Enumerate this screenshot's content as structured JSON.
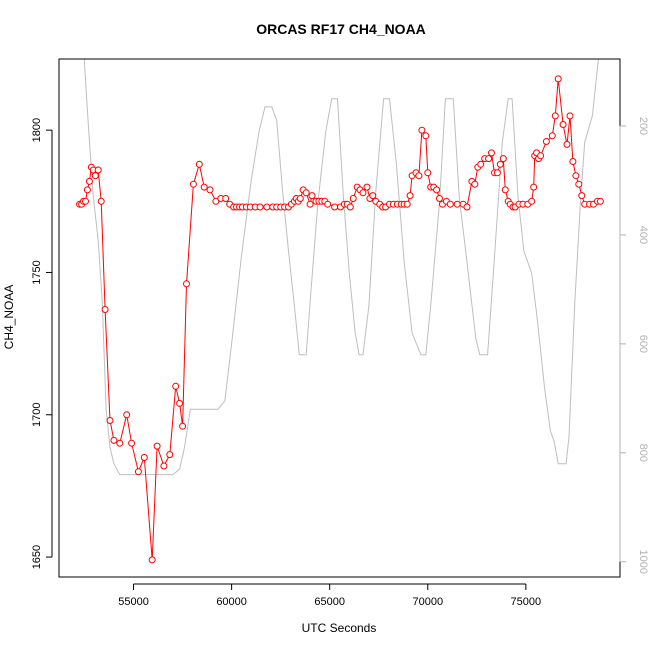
{
  "chart_data": {
    "type": "line",
    "title": "ORCAS RF17 CH4_NOAA",
    "xlabel": "UTC Seconds",
    "ylabel": "CH4_NOAA",
    "xlim": [
      51200,
      79800
    ],
    "ylim": [
      1643,
      1825
    ],
    "y2lim": [
      1028,
      77
    ],
    "x_ticks": [
      55000,
      60000,
      65000,
      70000,
      75000
    ],
    "y_ticks": [
      1650,
      1700,
      1750,
      1800
    ],
    "y2_ticks": [
      200,
      400,
      600,
      800,
      1000
    ],
    "colors": {
      "series": "#ff0000",
      "altitude": "#bebebe",
      "axis": "#000000",
      "right_axis": "#b3b3b3"
    },
    "grid": false,
    "series": [
      {
        "marker": "open-circle",
        "points": [
          [
            52250,
            1774
          ],
          [
            52350,
            1774
          ],
          [
            52450,
            1775
          ],
          [
            52550,
            1775
          ],
          [
            52650,
            1779
          ],
          [
            52750,
            1782
          ],
          [
            52850,
            1787
          ],
          [
            52950,
            1786
          ],
          [
            53050,
            1784
          ],
          [
            53200,
            1786
          ],
          [
            53350,
            1775
          ],
          [
            53550,
            1737
          ],
          [
            53800,
            1698
          ],
          [
            54000,
            1691
          ],
          [
            54300,
            1690
          ],
          [
            54650,
            1700
          ],
          [
            54900,
            1690
          ],
          [
            55250,
            1680
          ],
          [
            55550,
            1685
          ],
          [
            55950,
            1649
          ],
          [
            56200,
            1689
          ],
          [
            56550,
            1682
          ],
          [
            56850,
            1686
          ],
          [
            57150,
            1710
          ],
          [
            57350,
            1704
          ],
          [
            57500,
            1696
          ],
          [
            57700,
            1746
          ],
          [
            58050,
            1781
          ],
          [
            58350,
            1788
          ],
          [
            58600,
            1780
          ],
          [
            58900,
            1779
          ],
          [
            59200,
            1775
          ],
          [
            59450,
            1776
          ],
          [
            59700,
            1776
          ],
          [
            59900,
            1774
          ],
          [
            60100,
            1773
          ],
          [
            60250,
            1773
          ],
          [
            60400,
            1773
          ],
          [
            60550,
            1773
          ],
          [
            60750,
            1773
          ],
          [
            60950,
            1773
          ],
          [
            61200,
            1773
          ],
          [
            61450,
            1773
          ],
          [
            61800,
            1773
          ],
          [
            62100,
            1773
          ],
          [
            62300,
            1773
          ],
          [
            62500,
            1773
          ],
          [
            62700,
            1773
          ],
          [
            62900,
            1773
          ],
          [
            63050,
            1774
          ],
          [
            63200,
            1775
          ],
          [
            63300,
            1776
          ],
          [
            63400,
            1775
          ],
          [
            63500,
            1776
          ],
          [
            63650,
            1779
          ],
          [
            63800,
            1778
          ],
          [
            64000,
            1774
          ],
          [
            64100,
            1777
          ],
          [
            64300,
            1775
          ],
          [
            64450,
            1775
          ],
          [
            64600,
            1775
          ],
          [
            64750,
            1775
          ],
          [
            64900,
            1774
          ],
          [
            65250,
            1773
          ],
          [
            65550,
            1773
          ],
          [
            65750,
            1774
          ],
          [
            65900,
            1774
          ],
          [
            66050,
            1773
          ],
          [
            66200,
            1776
          ],
          [
            66400,
            1780
          ],
          [
            66550,
            1779
          ],
          [
            66700,
            1778
          ],
          [
            66900,
            1780
          ],
          [
            67050,
            1776
          ],
          [
            67200,
            1777
          ],
          [
            67350,
            1775
          ],
          [
            67550,
            1774
          ],
          [
            67700,
            1773
          ],
          [
            67850,
            1773
          ],
          [
            68050,
            1774
          ],
          [
            68250,
            1774
          ],
          [
            68450,
            1774
          ],
          [
            68650,
            1774
          ],
          [
            68800,
            1774
          ],
          [
            68950,
            1774
          ],
          [
            69100,
            1777
          ],
          [
            69200,
            1784
          ],
          [
            69400,
            1785
          ],
          [
            69550,
            1784
          ],
          [
            69700,
            1800
          ],
          [
            69900,
            1798
          ],
          [
            70000,
            1785
          ],
          [
            70150,
            1780
          ],
          [
            70300,
            1780
          ],
          [
            70450,
            1779
          ],
          [
            70600,
            1776
          ],
          [
            70750,
            1774
          ],
          [
            70950,
            1775
          ],
          [
            71150,
            1774
          ],
          [
            71500,
            1774
          ],
          [
            71800,
            1774
          ],
          [
            72000,
            1773
          ],
          [
            72250,
            1782
          ],
          [
            72400,
            1781
          ],
          [
            72550,
            1787
          ],
          [
            72700,
            1788
          ],
          [
            72900,
            1790
          ],
          [
            73100,
            1790
          ],
          [
            73250,
            1792
          ],
          [
            73400,
            1785
          ],
          [
            73550,
            1785
          ],
          [
            73700,
            1788
          ],
          [
            73850,
            1790
          ],
          [
            73950,
            1779
          ],
          [
            74100,
            1775
          ],
          [
            74200,
            1774
          ],
          [
            74350,
            1773
          ],
          [
            74450,
            1773
          ],
          [
            74650,
            1774
          ],
          [
            74850,
            1774
          ],
          [
            75100,
            1774
          ],
          [
            75300,
            1775
          ],
          [
            75400,
            1780
          ],
          [
            75450,
            1791
          ],
          [
            75550,
            1792
          ],
          [
            75650,
            1790
          ],
          [
            75750,
            1791
          ],
          [
            76050,
            1796
          ],
          [
            76350,
            1798
          ],
          [
            76500,
            1805
          ],
          [
            76650,
            1818
          ],
          [
            76900,
            1802
          ],
          [
            77100,
            1795
          ],
          [
            77250,
            1805
          ],
          [
            77400,
            1789
          ],
          [
            77550,
            1784
          ],
          [
            77700,
            1781
          ],
          [
            77850,
            1777
          ],
          [
            78000,
            1774
          ],
          [
            78250,
            1774
          ],
          [
            78450,
            1774
          ],
          [
            78650,
            1775
          ],
          [
            78800,
            1775
          ]
        ]
      }
    ],
    "altitude": {
      "axis": "right",
      "points": [
        [
          52350,
          1
        ],
        [
          52700,
          200
        ],
        [
          52950,
          330
        ],
        [
          53200,
          410
        ],
        [
          53400,
          520
        ],
        [
          53600,
          720
        ],
        [
          53800,
          790
        ],
        [
          54000,
          820
        ],
        [
          54300,
          840
        ],
        [
          54700,
          840
        ],
        [
          55300,
          840
        ],
        [
          56000,
          840
        ],
        [
          56400,
          840
        ],
        [
          57000,
          840
        ],
        [
          57350,
          830
        ],
        [
          57600,
          790
        ],
        [
          57900,
          720
        ],
        [
          58300,
          720
        ],
        [
          58800,
          720
        ],
        [
          59300,
          720
        ],
        [
          59650,
          705
        ],
        [
          60000,
          600
        ],
        [
          60500,
          440
        ],
        [
          61000,
          300
        ],
        [
          61400,
          210
        ],
        [
          61700,
          165
        ],
        [
          62050,
          165
        ],
        [
          62300,
          190
        ],
        [
          62600,
          320
        ],
        [
          62900,
          430
        ],
        [
          63200,
          530
        ],
        [
          63450,
          620
        ],
        [
          63600,
          620
        ],
        [
          63800,
          620
        ],
        [
          64050,
          500
        ],
        [
          64400,
          340
        ],
        [
          64800,
          210
        ],
        [
          65100,
          150
        ],
        [
          65400,
          150
        ],
        [
          65700,
          330
        ],
        [
          66000,
          470
        ],
        [
          66300,
          580
        ],
        [
          66500,
          620
        ],
        [
          66700,
          620
        ],
        [
          67000,
          530
        ],
        [
          67350,
          320
        ],
        [
          67750,
          150
        ],
        [
          68050,
          150
        ],
        [
          68400,
          270
        ],
        [
          68800,
          450
        ],
        [
          69200,
          580
        ],
        [
          69650,
          620
        ],
        [
          69900,
          620
        ],
        [
          70150,
          530
        ],
        [
          70600,
          340
        ],
        [
          70900,
          150
        ],
        [
          71300,
          150
        ],
        [
          71600,
          330
        ],
        [
          72000,
          450
        ],
        [
          72450,
          590
        ],
        [
          72650,
          620
        ],
        [
          73050,
          620
        ],
        [
          73400,
          440
        ],
        [
          73800,
          230
        ],
        [
          74100,
          150
        ],
        [
          74300,
          150
        ],
        [
          74600,
          330
        ],
        [
          74900,
          430
        ],
        [
          75300,
          470
        ],
        [
          75600,
          560
        ],
        [
          75950,
          680
        ],
        [
          76250,
          760
        ],
        [
          76450,
          780
        ],
        [
          76650,
          820
        ],
        [
          77050,
          820
        ],
        [
          77200,
          770
        ],
        [
          77500,
          520
        ],
        [
          77800,
          330
        ],
        [
          78000,
          230
        ],
        [
          78400,
          180
        ],
        [
          78700,
          77
        ]
      ]
    }
  }
}
